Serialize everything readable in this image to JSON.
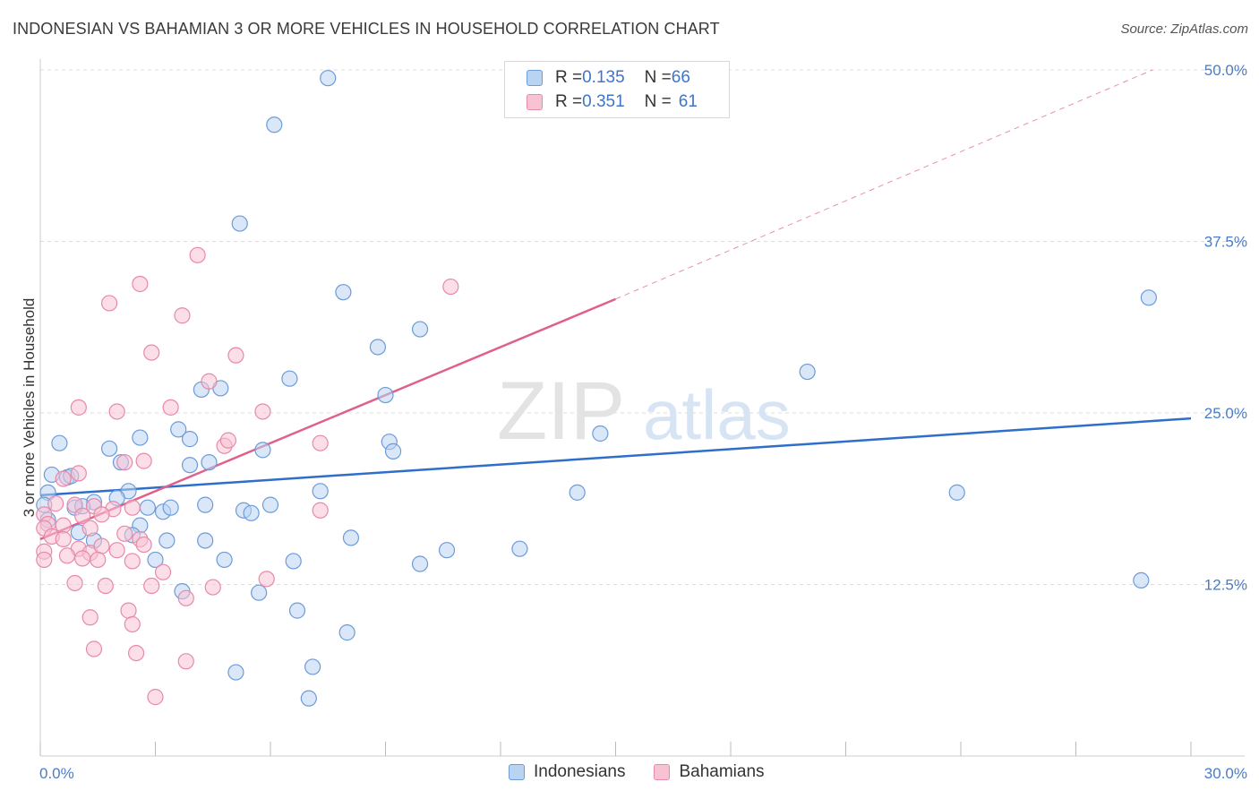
{
  "title": "INDONESIAN VS BAHAMIAN 3 OR MORE VEHICLES IN HOUSEHOLD CORRELATION CHART",
  "source": "Source: ZipAtlas.com",
  "watermark": {
    "zip": "ZIP",
    "atlas": "atlas"
  },
  "legend_top": {
    "rows": [
      {
        "r_label": "R = ",
        "r_value": "0.135",
        "n_label": "N = ",
        "n_value": "66"
      },
      {
        "r_label": "R = ",
        "r_value": "0.351",
        "n_label": "N = ",
        "n_value": "61"
      }
    ]
  },
  "legend_bottom": {
    "indonesians": "Indonesians",
    "bahamians": "Bahamians"
  },
  "colors": {
    "blue_fill": "#b9d3f3",
    "blue_stroke": "#6d9bd8",
    "blue_line": "#2f6fc9",
    "pink_fill": "#f7c3d3",
    "pink_stroke": "#e889a8",
    "pink_line": "#e0608c",
    "grid": "#dcdcdc",
    "axis_text": "#4a7cc7"
  },
  "chart_data": {
    "type": "scatter",
    "title": "INDONESIAN VS BAHAMIAN 3 OR MORE VEHICLES IN HOUSEHOLD CORRELATION CHART",
    "xlabel": "",
    "ylabel": "3 or more Vehicles in Household",
    "xlim": [
      0,
      30
    ],
    "ylim": [
      0,
      50
    ],
    "x_tick_labels": [
      "0.0%",
      "30.0%"
    ],
    "y_ticks": [
      12.5,
      25.0,
      37.5,
      50.0
    ],
    "y_tick_labels": [
      "12.5%",
      "25.0%",
      "37.5%",
      "50.0%"
    ],
    "grid": true,
    "series": [
      {
        "name": "Indonesians",
        "R": 0.135,
        "N": 66,
        "trend": {
          "x": [
            0,
            30
          ],
          "y": [
            19.0,
            24.6
          ],
          "style": "solid"
        },
        "points": [
          [
            7.5,
            49.4
          ],
          [
            6.1,
            46.0
          ],
          [
            5.2,
            38.8
          ],
          [
            7.9,
            33.8
          ],
          [
            9.9,
            31.1
          ],
          [
            8.8,
            29.8
          ],
          [
            6.5,
            27.5
          ],
          [
            4.2,
            26.7
          ],
          [
            4.7,
            26.8
          ],
          [
            9.0,
            26.3
          ],
          [
            14.6,
            23.5
          ],
          [
            3.6,
            23.8
          ],
          [
            2.6,
            23.2
          ],
          [
            3.9,
            23.1
          ],
          [
            0.5,
            22.8
          ],
          [
            1.8,
            22.4
          ],
          [
            5.8,
            22.3
          ],
          [
            9.1,
            22.9
          ],
          [
            9.2,
            22.2
          ],
          [
            2.1,
            21.4
          ],
          [
            3.9,
            21.2
          ],
          [
            4.4,
            21.4
          ],
          [
            0.3,
            20.5
          ],
          [
            0.7,
            20.3
          ],
          [
            0.8,
            20.4
          ],
          [
            2.3,
            19.3
          ],
          [
            0.2,
            19.2
          ],
          [
            7.3,
            19.3
          ],
          [
            14.0,
            19.2
          ],
          [
            23.9,
            19.2
          ],
          [
            1.4,
            18.5
          ],
          [
            2.0,
            18.8
          ],
          [
            0.1,
            18.3
          ],
          [
            0.9,
            18.1
          ],
          [
            1.1,
            18.2
          ],
          [
            2.8,
            18.1
          ],
          [
            3.2,
            17.8
          ],
          [
            3.4,
            18.1
          ],
          [
            4.3,
            18.3
          ],
          [
            6.0,
            18.3
          ],
          [
            5.3,
            17.9
          ],
          [
            5.5,
            17.7
          ],
          [
            0.2,
            17.2
          ],
          [
            2.6,
            16.8
          ],
          [
            1.0,
            16.3
          ],
          [
            2.4,
            16.1
          ],
          [
            1.4,
            15.7
          ],
          [
            3.3,
            15.7
          ],
          [
            4.3,
            15.7
          ],
          [
            8.1,
            15.9
          ],
          [
            10.6,
            15.0
          ],
          [
            12.5,
            15.1
          ],
          [
            3.0,
            14.3
          ],
          [
            4.8,
            14.3
          ],
          [
            6.6,
            14.2
          ],
          [
            9.9,
            14.0
          ],
          [
            3.7,
            12.0
          ],
          [
            5.7,
            11.9
          ],
          [
            28.7,
            12.8
          ],
          [
            6.7,
            10.6
          ],
          [
            8.0,
            9.0
          ],
          [
            7.1,
            6.5
          ],
          [
            5.1,
            6.1
          ],
          [
            7.0,
            4.2
          ],
          [
            20.0,
            28.0
          ],
          [
            28.9,
            33.4
          ]
        ]
      },
      {
        "name": "Bahamians",
        "R": 0.351,
        "N": 61,
        "trend": {
          "x": [
            0,
            15
          ],
          "y": [
            15.8,
            33.3
          ],
          "style": "solid",
          "extension": {
            "x": [
              15,
              29
            ],
            "y": [
              33.3,
              50.0
            ],
            "style": "dashed"
          }
        },
        "points": [
          [
            4.1,
            36.5
          ],
          [
            10.7,
            34.2
          ],
          [
            2.6,
            34.4
          ],
          [
            1.8,
            33.0
          ],
          [
            3.7,
            32.1
          ],
          [
            2.9,
            29.4
          ],
          [
            5.1,
            29.2
          ],
          [
            4.4,
            27.3
          ],
          [
            1.0,
            25.4
          ],
          [
            2.0,
            25.1
          ],
          [
            3.4,
            25.4
          ],
          [
            5.8,
            25.1
          ],
          [
            4.8,
            22.6
          ],
          [
            4.9,
            23.0
          ],
          [
            7.3,
            22.8
          ],
          [
            2.2,
            21.4
          ],
          [
            2.7,
            21.5
          ],
          [
            1.0,
            20.6
          ],
          [
            0.6,
            20.2
          ],
          [
            0.4,
            18.4
          ],
          [
            0.9,
            18.3
          ],
          [
            1.4,
            18.2
          ],
          [
            1.9,
            18.0
          ],
          [
            2.4,
            18.1
          ],
          [
            7.3,
            17.9
          ],
          [
            0.1,
            17.6
          ],
          [
            0.2,
            16.9
          ],
          [
            0.6,
            16.8
          ],
          [
            1.1,
            17.5
          ],
          [
            1.6,
            17.6
          ],
          [
            0.1,
            16.6
          ],
          [
            0.3,
            16.0
          ],
          [
            0.6,
            15.8
          ],
          [
            1.3,
            16.6
          ],
          [
            2.2,
            16.2
          ],
          [
            2.6,
            15.8
          ],
          [
            0.1,
            14.9
          ],
          [
            1.0,
            15.1
          ],
          [
            1.3,
            14.8
          ],
          [
            1.6,
            15.3
          ],
          [
            2.0,
            15.0
          ],
          [
            2.7,
            15.4
          ],
          [
            0.1,
            14.3
          ],
          [
            0.7,
            14.6
          ],
          [
            1.1,
            14.4
          ],
          [
            1.5,
            14.3
          ],
          [
            2.4,
            14.2
          ],
          [
            3.2,
            13.4
          ],
          [
            0.9,
            12.6
          ],
          [
            1.7,
            12.4
          ],
          [
            2.9,
            12.4
          ],
          [
            4.5,
            12.3
          ],
          [
            5.9,
            12.9
          ],
          [
            3.8,
            11.5
          ],
          [
            1.3,
            10.1
          ],
          [
            2.3,
            10.6
          ],
          [
            2.4,
            9.6
          ],
          [
            1.4,
            7.8
          ],
          [
            2.5,
            7.5
          ],
          [
            3.8,
            6.9
          ],
          [
            3.0,
            4.3
          ]
        ]
      }
    ]
  }
}
